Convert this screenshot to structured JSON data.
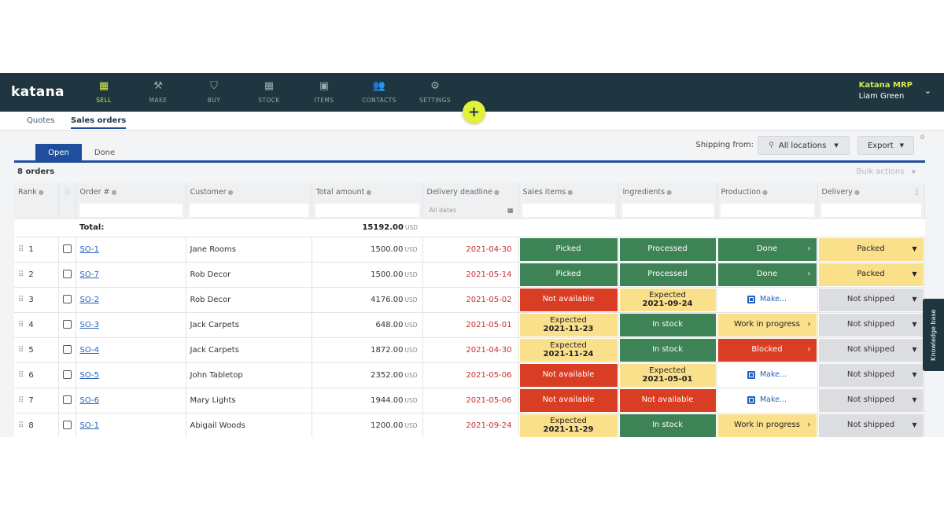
{
  "app": {
    "logo": "katana",
    "nav": [
      {
        "label": "SELL",
        "icon": "shop-icon",
        "active": true
      },
      {
        "label": "MAKE",
        "icon": "hammer-icon",
        "active": false
      },
      {
        "label": "BUY",
        "icon": "basket-icon",
        "active": false
      },
      {
        "label": "STOCK",
        "icon": "stock-icon",
        "active": false
      },
      {
        "label": "ITEMS",
        "icon": "items-icon",
        "active": false
      },
      {
        "label": "CONTACTS",
        "icon": "contacts-icon",
        "active": false
      },
      {
        "label": "SETTINGS",
        "icon": "gear-icon",
        "active": false
      }
    ],
    "user": {
      "brand": "Katana MRP",
      "name": "Liam Green"
    },
    "plus_label": "+"
  },
  "subtabs": {
    "quotes": "Quotes",
    "sales_orders": "Sales orders"
  },
  "toolbar": {
    "open": "Open",
    "done": "Done",
    "shipping_from": "Shipping from:",
    "locations": "All locations",
    "export": "Export",
    "order_count": "8 orders",
    "bulk_actions": "Bulk actions"
  },
  "table": {
    "headers": {
      "rank": "Rank",
      "order": "Order #",
      "customer": "Customer",
      "total": "Total amount",
      "deadline": "Delivery deadline",
      "sales_items": "Sales items",
      "ingredients": "Ingredients",
      "production": "Production",
      "delivery": "Delivery"
    },
    "filter_dates": "All dates",
    "total_label": "Total:",
    "total_value": "15192.00",
    "currency": "USD",
    "rows": [
      {
        "rank": "1",
        "order": "SO-1",
        "customer": "Jane Rooms",
        "amount": "1500.00",
        "deadline": "2021-04-30",
        "sales": {
          "status": "green",
          "text": "Picked"
        },
        "ingredients": {
          "status": "green",
          "text": "Processed"
        },
        "production": {
          "status": "green",
          "text": "Done"
        },
        "delivery": {
          "status": "yellow",
          "text": "Packed"
        }
      },
      {
        "rank": "2",
        "order": "SO-7",
        "customer": "Rob Decor",
        "amount": "1500.00",
        "deadline": "2021-05-14",
        "sales": {
          "status": "green",
          "text": "Picked"
        },
        "ingredients": {
          "status": "green",
          "text": "Processed"
        },
        "production": {
          "status": "green",
          "text": "Done"
        },
        "delivery": {
          "status": "yellow",
          "text": "Packed"
        }
      },
      {
        "rank": "3",
        "order": "SO-2",
        "customer": "Rob Decor",
        "amount": "4176.00",
        "deadline": "2021-05-02",
        "sales": {
          "status": "red",
          "text": "Not available"
        },
        "ingredients": {
          "status": "yellow",
          "text": "Expected",
          "sub": "2021-09-24"
        },
        "production": {
          "status": "make",
          "text": "Make..."
        },
        "delivery": {
          "status": "grey",
          "text": "Not shipped"
        }
      },
      {
        "rank": "4",
        "order": "SO-3",
        "customer": "Jack Carpets",
        "amount": "648.00",
        "deadline": "2021-05-01",
        "sales": {
          "status": "yellow",
          "text": "Expected",
          "sub": "2021-11-23"
        },
        "ingredients": {
          "status": "green",
          "text": "In stock"
        },
        "production": {
          "status": "yellow",
          "text": "Work in progress"
        },
        "delivery": {
          "status": "grey",
          "text": "Not shipped"
        }
      },
      {
        "rank": "5",
        "order": "SO-4",
        "customer": "Jack Carpets",
        "amount": "1872.00",
        "deadline": "2021-04-30",
        "sales": {
          "status": "yellow",
          "text": "Expected",
          "sub": "2021-11-24"
        },
        "ingredients": {
          "status": "green",
          "text": "In stock"
        },
        "production": {
          "status": "red",
          "text": "Blocked"
        },
        "delivery": {
          "status": "grey",
          "text": "Not shipped"
        }
      },
      {
        "rank": "6",
        "order": "SO-5",
        "customer": "John Tabletop",
        "amount": "2352.00",
        "deadline": "2021-05-06",
        "sales": {
          "status": "red",
          "text": "Not available"
        },
        "ingredients": {
          "status": "yellow",
          "text": "Expected",
          "sub": "2021-05-01"
        },
        "production": {
          "status": "make",
          "text": "Make..."
        },
        "delivery": {
          "status": "grey",
          "text": "Not shipped"
        }
      },
      {
        "rank": "7",
        "order": "SO-6",
        "customer": "Mary Lights",
        "amount": "1944.00",
        "deadline": "2021-05-06",
        "sales": {
          "status": "red",
          "text": "Not available"
        },
        "ingredients": {
          "status": "red",
          "text": "Not available"
        },
        "production": {
          "status": "make",
          "text": "Make..."
        },
        "delivery": {
          "status": "grey",
          "text": "Not shipped"
        }
      },
      {
        "rank": "8",
        "order": "SO-1",
        "customer": "Abigail Woods",
        "amount": "1200.00",
        "deadline": "2021-09-24",
        "sales": {
          "status": "yellow",
          "text": "Expected",
          "sub": "2021-11-29"
        },
        "ingredients": {
          "status": "green",
          "text": "In stock"
        },
        "production": {
          "status": "yellow",
          "text": "Work in progress"
        },
        "delivery": {
          "status": "grey",
          "text": "Not shipped"
        }
      }
    ]
  },
  "knowledge_base": "Knowledge base",
  "colors": {
    "nav_bg": "#1f3640",
    "accent": "#d4e84f",
    "primary": "#1f4f9c",
    "green": "#3e8355",
    "red": "#d93d23",
    "yellow": "#fbe08b",
    "grey": "#dcdde0"
  }
}
